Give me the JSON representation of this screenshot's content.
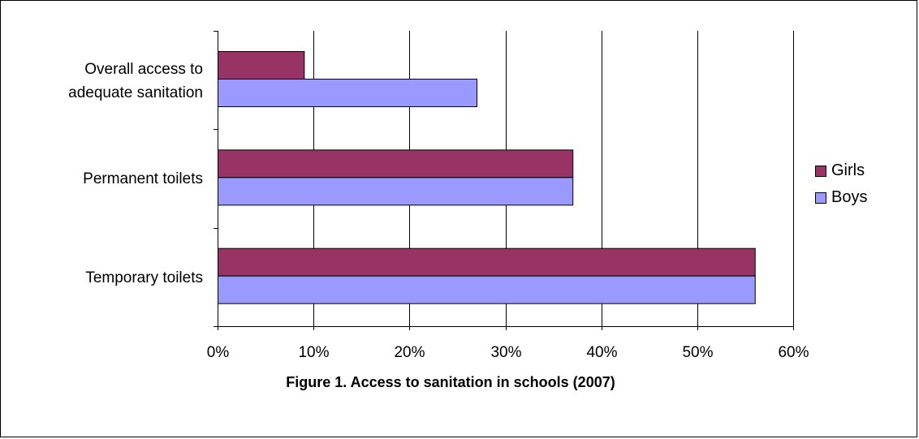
{
  "colors": {
    "girls": "#993366",
    "boys": "#9999ff",
    "grid": "#000000",
    "axis": "#000000"
  },
  "chart_data": {
    "type": "bar",
    "orientation": "horizontal",
    "categories": [
      "Overall access to adequate sanitation",
      "Permanent toilets",
      "Temporary toilets"
    ],
    "category_display": [
      [
        "Overall access to",
        "adequate sanitation"
      ],
      [
        "Permanent toilets"
      ],
      [
        "Temporary toilets"
      ]
    ],
    "series": [
      {
        "name": "Girls",
        "values": [
          9,
          37,
          56
        ]
      },
      {
        "name": "Boys",
        "values": [
          27,
          37,
          56
        ]
      }
    ],
    "xlim": [
      0,
      60
    ],
    "xticks": [
      0,
      10,
      20,
      30,
      40,
      50,
      60
    ],
    "xtick_labels": [
      "0%",
      "10%",
      "20%",
      "30%",
      "40%",
      "50%",
      "60%"
    ],
    "value_unit": "percent",
    "grid": "vertical gridlines",
    "legend_position": "right",
    "caption": "Figure 1. Access to sanitation in schools (2007)"
  }
}
